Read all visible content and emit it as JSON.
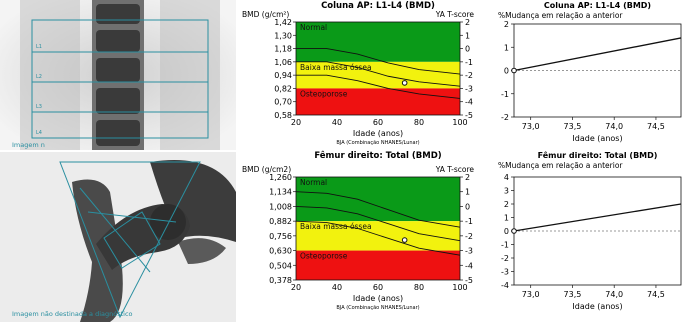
{
  "images": {
    "spine_caption": "Imagem n",
    "femur_caption": "Imagem não destinada a diagnóstico"
  },
  "colors": {
    "green": "#0a9a18",
    "yellow": "#f2f20e",
    "red": "#ee1111",
    "line_accent": "#2a8fa0"
  },
  "chart_data": [
    {
      "id": "spine_bmd",
      "type": "area",
      "title": "Coluna AP: L1-L4 (BMD)",
      "ylabel": "BMD (g/cm²)",
      "y2label": "YA T-score",
      "xlabel": "Idade (anos)",
      "source": "BJA (Combinação NHANES/Lunar)",
      "x_ticks": [
        "20",
        "40",
        "60",
        "80",
        "100"
      ],
      "xlim": [
        20,
        100
      ],
      "y_ticks": [
        "1,42",
        "1,30",
        "1,18",
        "1,06",
        "0,94",
        "0,82",
        "0,70",
        "0,58"
      ],
      "ylim": [
        0.58,
        1.42
      ],
      "y2_ticks": [
        "2",
        "1",
        "0",
        "-1",
        "-2",
        "-3",
        "-4",
        "-5"
      ],
      "zones": [
        {
          "label": "Normal",
          "from": 1.06,
          "to": 1.42
        },
        {
          "label": "Baixa massa óssea",
          "from": 0.82,
          "to": 1.06
        },
        {
          "label": "Osteoporose",
          "from": 0.58,
          "to": 0.82
        }
      ],
      "reference_curves": [
        {
          "x": [
            20,
            35,
            50,
            65,
            80,
            100
          ],
          "y": [
            1.18,
            1.18,
            1.13,
            1.05,
            0.99,
            0.95
          ]
        },
        {
          "x": [
            20,
            35,
            50,
            65,
            80,
            100
          ],
          "y": [
            1.06,
            1.06,
            1.01,
            0.93,
            0.88,
            0.84
          ]
        },
        {
          "x": [
            20,
            35,
            50,
            65,
            80,
            100
          ],
          "y": [
            0.94,
            0.94,
            0.89,
            0.82,
            0.77,
            0.73
          ]
        }
      ],
      "patient_point": {
        "x": 73,
        "y": 0.87
      }
    },
    {
      "id": "spine_change",
      "type": "line",
      "title": "Coluna AP: L1-L4 (BMD)",
      "subtitle": "%Mudança em relação a anterior",
      "xlabel": "Idade (anos)",
      "x_ticks": [
        "73,0",
        "73,5",
        "74,0",
        "74,5"
      ],
      "xlim": [
        72.8,
        74.8
      ],
      "y_ticks": [
        "2",
        "1",
        "0",
        "-1",
        "-2"
      ],
      "ylim": [
        -2,
        2
      ],
      "x": [
        72.8,
        74.8
      ],
      "y": [
        0.0,
        1.4
      ]
    },
    {
      "id": "femur_bmd",
      "type": "area",
      "title": "Fêmur direito: Total (BMD)",
      "ylabel": "BMD (g/cm2)",
      "y2label": "YA T-score",
      "xlabel": "Idade (anos)",
      "source": "BJA (Combinação NHANES/Lunar)",
      "x_ticks": [
        "20",
        "40",
        "60",
        "80",
        "100"
      ],
      "xlim": [
        20,
        100
      ],
      "y_ticks": [
        "1,260",
        "1,134",
        "1,008",
        "0,882",
        "0,756",
        "0,630",
        "0,504",
        "0,378"
      ],
      "ylim": [
        0.378,
        1.26
      ],
      "y2_ticks": [
        "2",
        "1",
        "0",
        "-1",
        "-2",
        "-3",
        "-4",
        "-5"
      ],
      "zones": [
        {
          "label": "Normal",
          "from": 0.882,
          "to": 1.26
        },
        {
          "label": "Baixa massa óssea",
          "from": 0.63,
          "to": 0.882
        },
        {
          "label": "Osteoporose",
          "from": 0.378,
          "to": 0.63
        }
      ],
      "reference_curves": [
        {
          "x": [
            20,
            35,
            50,
            65,
            80,
            100
          ],
          "y": [
            1.134,
            1.12,
            1.07,
            0.98,
            0.89,
            0.83
          ]
        },
        {
          "x": [
            20,
            35,
            50,
            65,
            80,
            100
          ],
          "y": [
            1.008,
            0.995,
            0.945,
            0.86,
            0.775,
            0.715
          ]
        },
        {
          "x": [
            20,
            35,
            50,
            65,
            80,
            100
          ],
          "y": [
            0.882,
            0.87,
            0.82,
            0.735,
            0.65,
            0.59
          ]
        }
      ],
      "patient_point": {
        "x": 73,
        "y": 0.72
      }
    },
    {
      "id": "femur_change",
      "type": "line",
      "title": "Fêmur direito: Total (BMD)",
      "subtitle": "%Mudança em relação a anterior",
      "xlabel": "Idade (anos)",
      "x_ticks": [
        "73,0",
        "73,5",
        "74,0",
        "74,5"
      ],
      "xlim": [
        72.8,
        74.8
      ],
      "y_ticks": [
        "4",
        "3",
        "2",
        "1",
        "0",
        "-1",
        "-2",
        "-3",
        "-4"
      ],
      "ylim": [
        -4,
        4
      ],
      "x": [
        72.8,
        74.8
      ],
      "y": [
        0.0,
        2.0
      ]
    }
  ]
}
